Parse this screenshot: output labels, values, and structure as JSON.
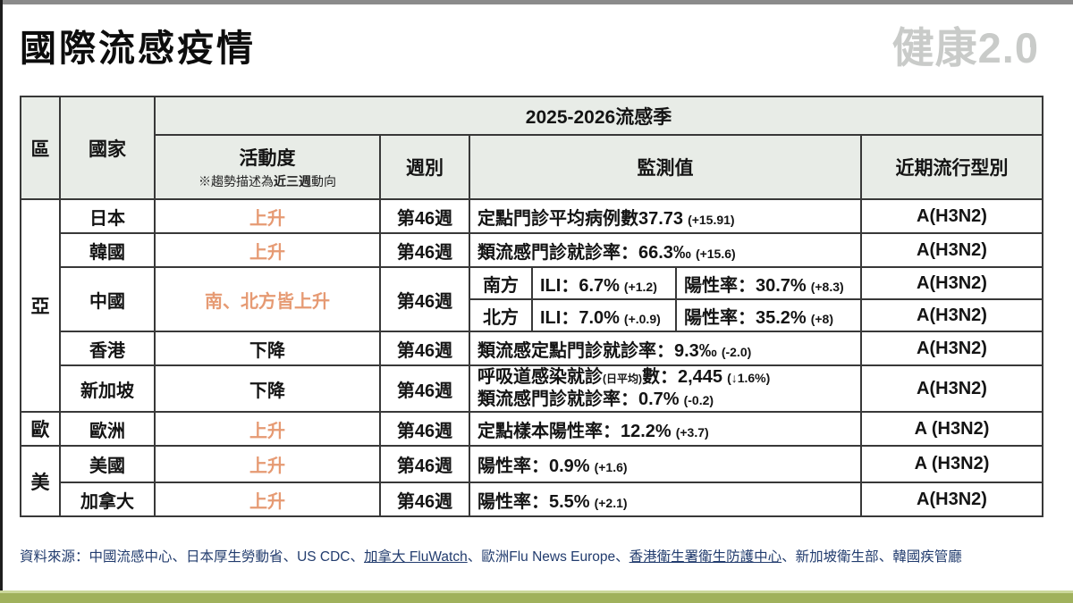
{
  "page": {
    "title": "國際流感疫情",
    "logo_text": "健康2.0",
    "logo_arrow": "↑"
  },
  "table": {
    "season_header": "2025-2026流感季",
    "headers": {
      "region": "區",
      "country": "國家",
      "activity": "活動度",
      "activity_note_prefix": "※趨勢描述為",
      "activity_note_strong": "近三週",
      "activity_note_suffix": "動向",
      "week": "週別",
      "monitor": "監測值",
      "flu_type": "近期流行型別"
    },
    "regions": [
      {
        "label": "亞"
      },
      {
        "label": "歐"
      },
      {
        "label": "美"
      }
    ],
    "rows": [
      {
        "country": "日本",
        "activity": "上升",
        "week": "第46週",
        "monitor_main": "定點門診平均病例數37.73",
        "monitor_delta": "(+15.91)",
        "type": "A(H3N2)"
      },
      {
        "country": "韓國",
        "activity": "上升",
        "week": "第46週",
        "monitor_main": "類流感門診就診率：66.3‰",
        "monitor_delta": "(+15.6)",
        "type": "A(H3N2)"
      },
      {
        "country": "中國",
        "activity": "南、北方皆上升",
        "week": "第46週",
        "sub": [
          {
            "label": "南方",
            "ili_main": "ILI：6.7%",
            "ili_delta": "(+1.2)",
            "pos_main": "陽性率：30.7%",
            "pos_delta": "(+8.3)",
            "type": "A(H3N2)"
          },
          {
            "label": "北方",
            "ili_main": "ILI：7.0%",
            "ili_delta": "(+.0.9)",
            "pos_main": "陽性率：35.2%",
            "pos_delta": "(+8)",
            "type": "A(H3N2)"
          }
        ]
      },
      {
        "country": "香港",
        "activity": "下降",
        "week": "第46週",
        "monitor_main": "類流感定點門診就診率：9.3‰",
        "monitor_delta": "(-2.0)",
        "type": "A(H3N2)"
      },
      {
        "country": "新加坡",
        "activity": "下降",
        "week": "第46週",
        "monitor_line1_pre": "呼吸道感染就診",
        "monitor_line1_small": "(日平均)",
        "monitor_line1_mid": "數：2,445",
        "monitor_line1_delta": "(↓1.6%)",
        "monitor_line2_main": "類流感門診就診率：0.7%",
        "monitor_line2_delta": "(-0.2)",
        "type": "A(H3N2)"
      },
      {
        "country": "歐洲",
        "activity": "上升",
        "week": "第46週",
        "monitor_main": "定點樣本陽性率：12.2%",
        "monitor_delta": "(+3.7)",
        "type": "A (H3N2)"
      },
      {
        "country": "美國",
        "activity": "上升",
        "week": "第46週",
        "monitor_main": "陽性率：0.9%",
        "monitor_delta": "(+1.6)",
        "type": "A (H3N2)"
      },
      {
        "country": "加拿大",
        "activity": "上升",
        "week": "第46週",
        "monitor_main": "陽性率：5.5%",
        "monitor_delta": "(+2.1)",
        "type": "A(H3N2)"
      }
    ]
  },
  "footer": {
    "label": "資料來源：",
    "separator": "、",
    "sources": [
      {
        "name": "中國流感中心"
      },
      {
        "name": "日本厚生勞動省"
      },
      {
        "name": "US CDC"
      },
      {
        "name": "加拿大 FluWatch"
      },
      {
        "name": "歐洲Flu News Europe"
      },
      {
        "name": "香港衛生署衛生防護中心"
      },
      {
        "name": "新加坡衛生部"
      },
      {
        "name": "韓國疾管廳"
      }
    ]
  },
  "colors": {
    "accent_orange": "#E69A73",
    "header_bg": "#E8ECE7",
    "footer_blue": "#223C6E",
    "bottom_bar_olive": "#A0B15C",
    "top_bar_gray": "#8B8B8B",
    "logo_gray": "#C9CBC9"
  }
}
